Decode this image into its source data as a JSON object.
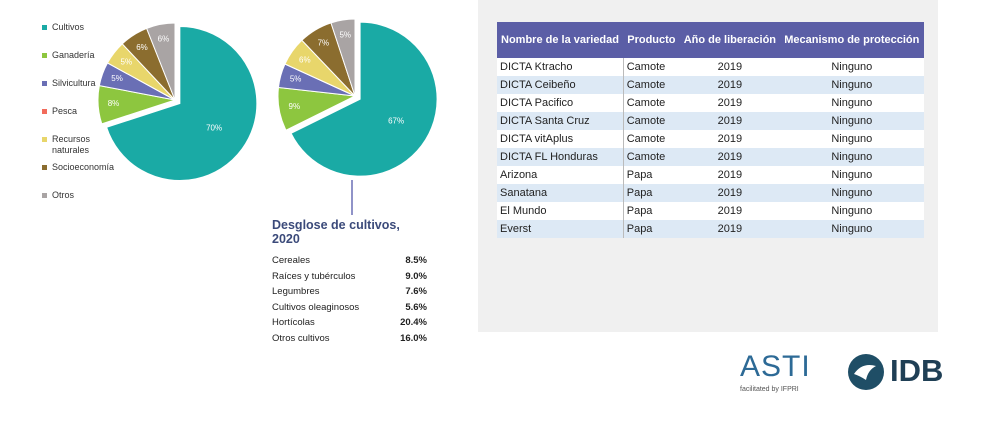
{
  "chart_data": [
    {
      "type": "pie",
      "categories": [
        "Cultivos",
        "Ganadería",
        "Silvicultura",
        "Pesca",
        "Recursos naturales",
        "Socioeconomía",
        "Otros"
      ],
      "colors": [
        "#1aaaa5",
        "#8dc63f",
        "#6a6fb5",
        "#f26b5b",
        "#e8d66b",
        "#8b6d2f",
        "#a9a4a4"
      ],
      "values": [
        70,
        8,
        5,
        0,
        5,
        6,
        6
      ],
      "value_labels": [
        "70%",
        "8%",
        "5%",
        null,
        "5%",
        "6%",
        "6%"
      ]
    },
    {
      "type": "pie",
      "categories": [
        "Cultivos",
        "Ganadería",
        "Silvicultura",
        "Pesca",
        "Recursos naturales",
        "Socioeconomía",
        "Otros"
      ],
      "colors": [
        "#1aaaa5",
        "#8dc63f",
        "#6a6fb5",
        "#f26b5b",
        "#e8d66b",
        "#8b6d2f",
        "#a9a4a4"
      ],
      "values": [
        67,
        9,
        5,
        0,
        6,
        7,
        5
      ],
      "value_labels": [
        "67%",
        "9%",
        "5%",
        null,
        "6%",
        "7%",
        "5%"
      ]
    }
  ],
  "crop_breakdown": {
    "title": "Desglose de cultivos, 2020",
    "rows": [
      [
        "Cereales",
        "8.5%"
      ],
      [
        "Raíces y tubérculos",
        "9.0%"
      ],
      [
        "Legumbres",
        "7.6%"
      ],
      [
        "Cultivos oleaginosos",
        "5.6%"
      ],
      [
        "Hortícolas",
        "20.4%"
      ],
      [
        "Otros cultivos",
        "16.0%"
      ]
    ]
  },
  "table": {
    "header": [
      "Nombre de la variedad",
      "Producto",
      "Año de liberación",
      "Mecanismo de protección"
    ],
    "rows": [
      [
        "DICTA Ktracho",
        "Camote",
        "2019",
        "Ninguno"
      ],
      [
        "DICTA Ceibeño",
        "Camote",
        "2019",
        "Ninguno"
      ],
      [
        "DICTA Pacifico",
        "Camote",
        "2019",
        "Ninguno"
      ],
      [
        "DICTA Santa Cruz",
        "Camote",
        "2019",
        "Ninguno"
      ],
      [
        "DICTA vitAplus",
        "Camote",
        "2019",
        "Ninguno"
      ],
      [
        "DICTA FL Honduras",
        "Camote",
        "2019",
        "Ninguno"
      ],
      [
        "Arizona",
        "Papa",
        "2019",
        "Ninguno"
      ],
      [
        "Sanatana",
        "Papa",
        "2019",
        "Ninguno"
      ],
      [
        "El Mundo",
        "Papa",
        "2019",
        "Ninguno"
      ],
      [
        "Everst",
        "Papa",
        "2019",
        "Ninguno"
      ]
    ]
  },
  "logos": {
    "asti": "ASTI",
    "asti_tagline": "facilitated by IFPRI",
    "idb": "IDB"
  }
}
